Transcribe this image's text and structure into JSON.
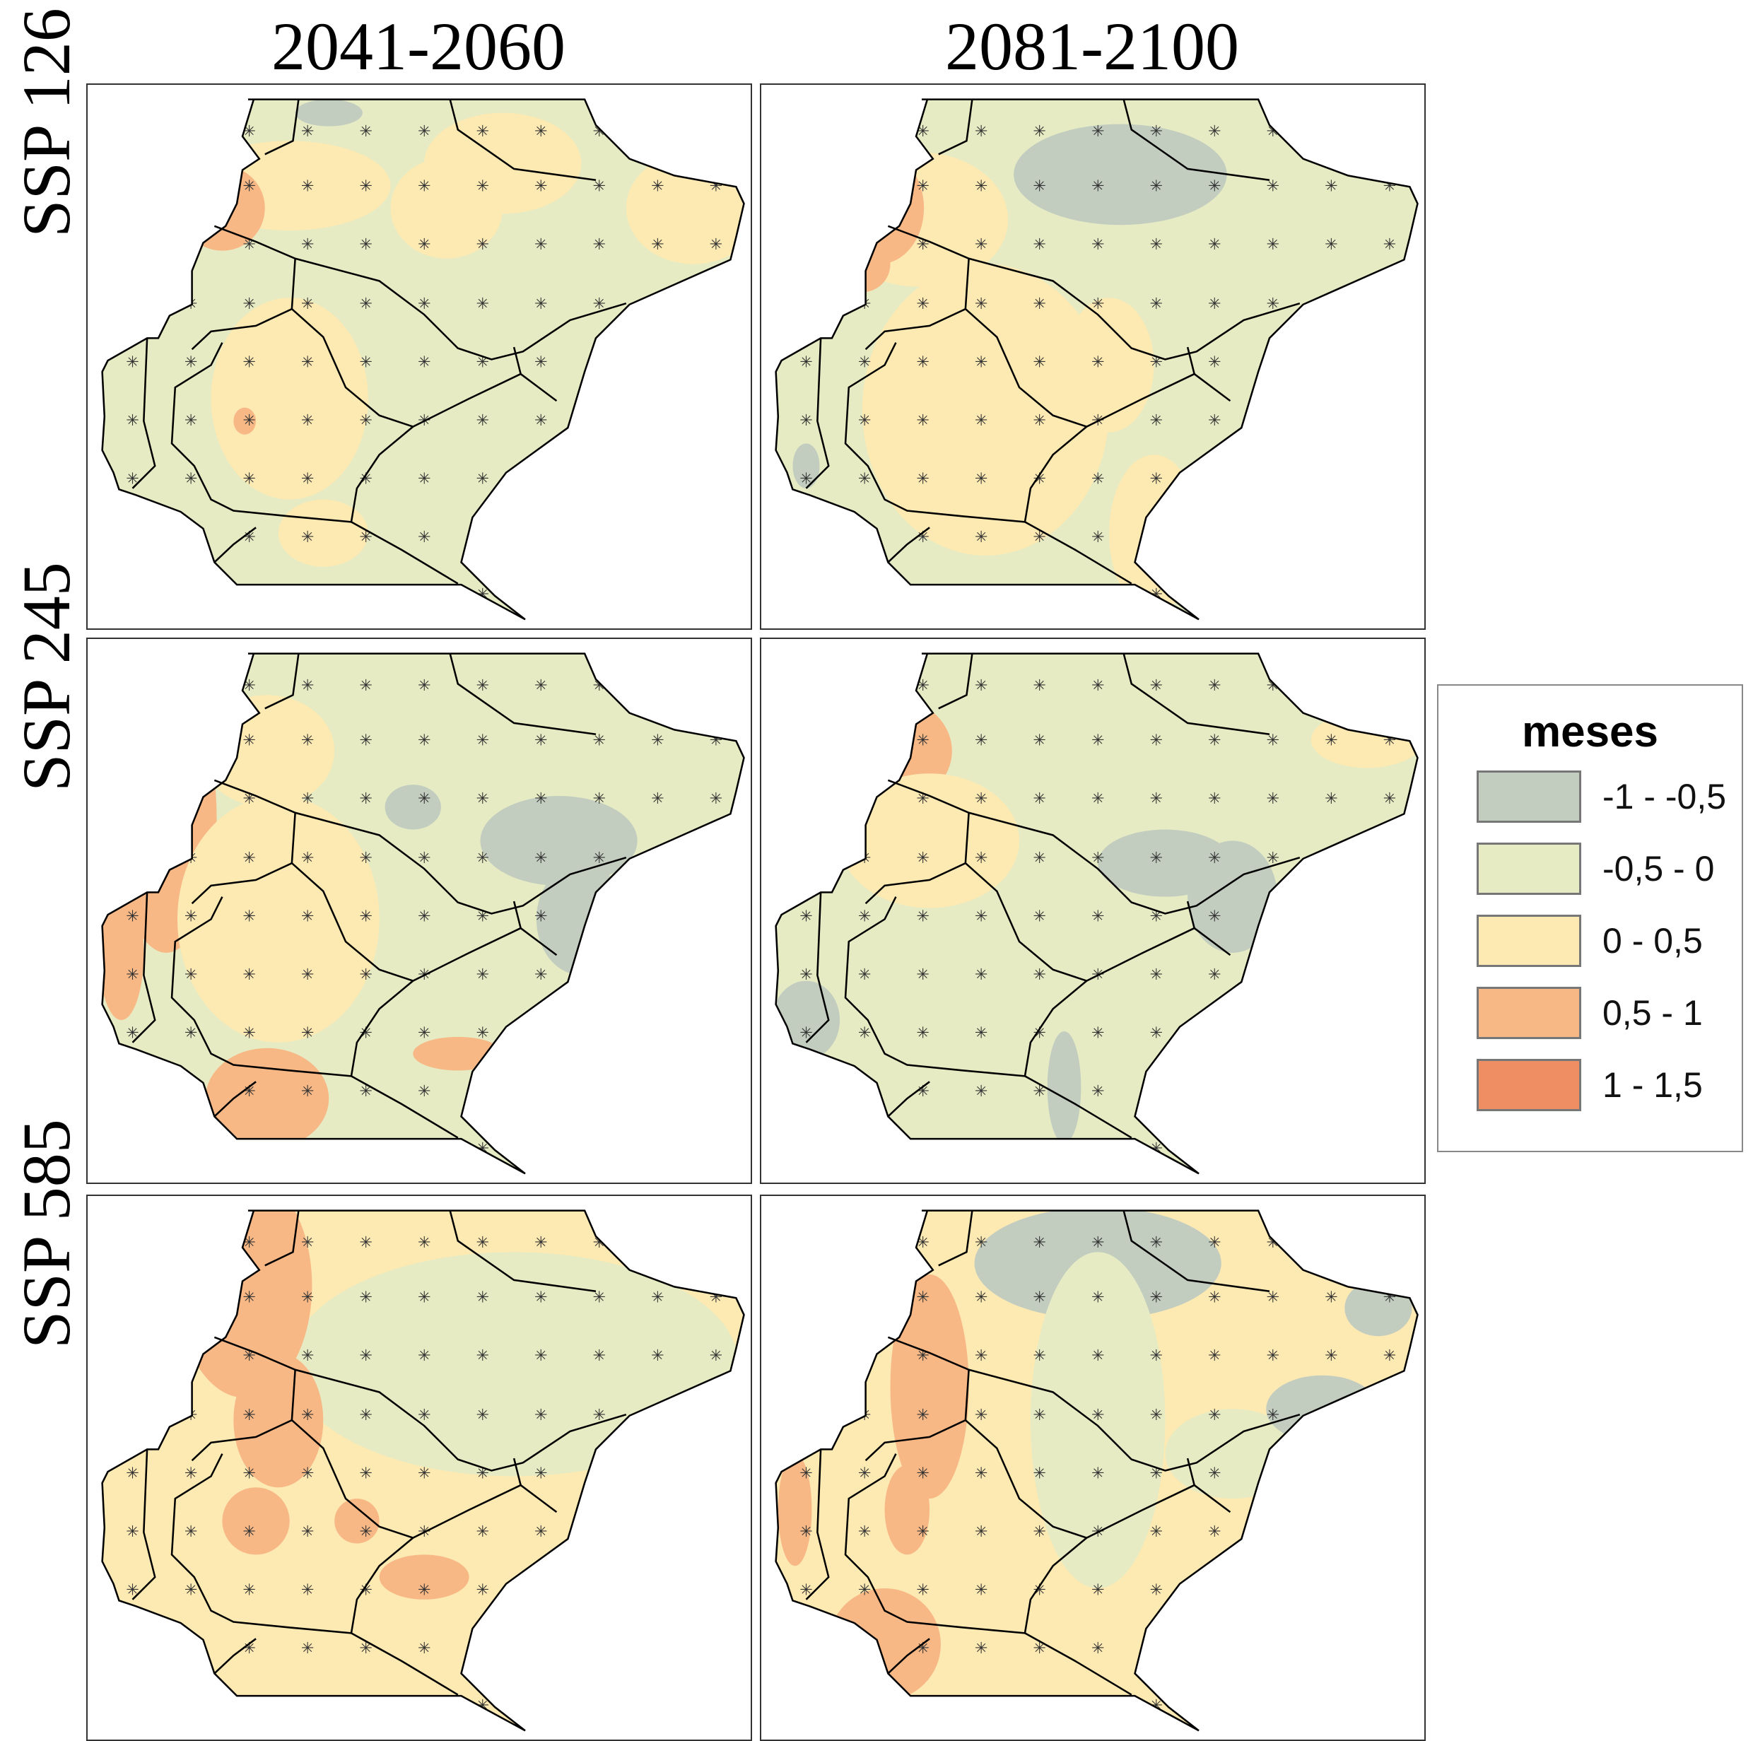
{
  "columns": [
    "2041-2060",
    "2081-2100"
  ],
  "rows": [
    "SSP 126",
    "SSP 245",
    "SSP 585"
  ],
  "legend": {
    "title": "meses",
    "items": [
      {
        "label": "-1 - -0,5",
        "color": "#c2cdc0"
      },
      {
        "label": "-0,5 - 0",
        "color": "#e6ebc3"
      },
      {
        "label": "0 - 0,5",
        "color": "#fde9b2"
      },
      {
        "label": "0,5 - 1",
        "color": "#f7b886"
      },
      {
        "label": "1 - 1,5",
        "color": "#ee8e62"
      }
    ]
  },
  "panels": [
    {
      "scenario": "SSP 126",
      "period": "2041-2060",
      "dominant_class": 1
    },
    {
      "scenario": "SSP 126",
      "period": "2081-2100",
      "dominant_class": 1
    },
    {
      "scenario": "SSP 245",
      "period": "2041-2060",
      "dominant_class": 1
    },
    {
      "scenario": "SSP 245",
      "period": "2081-2100",
      "dominant_class": 1
    },
    {
      "scenario": "SSP 585",
      "period": "2041-2060",
      "dominant_class": 2
    },
    {
      "scenario": "SSP 585",
      "period": "2081-2100",
      "dominant_class": 2
    }
  ]
}
